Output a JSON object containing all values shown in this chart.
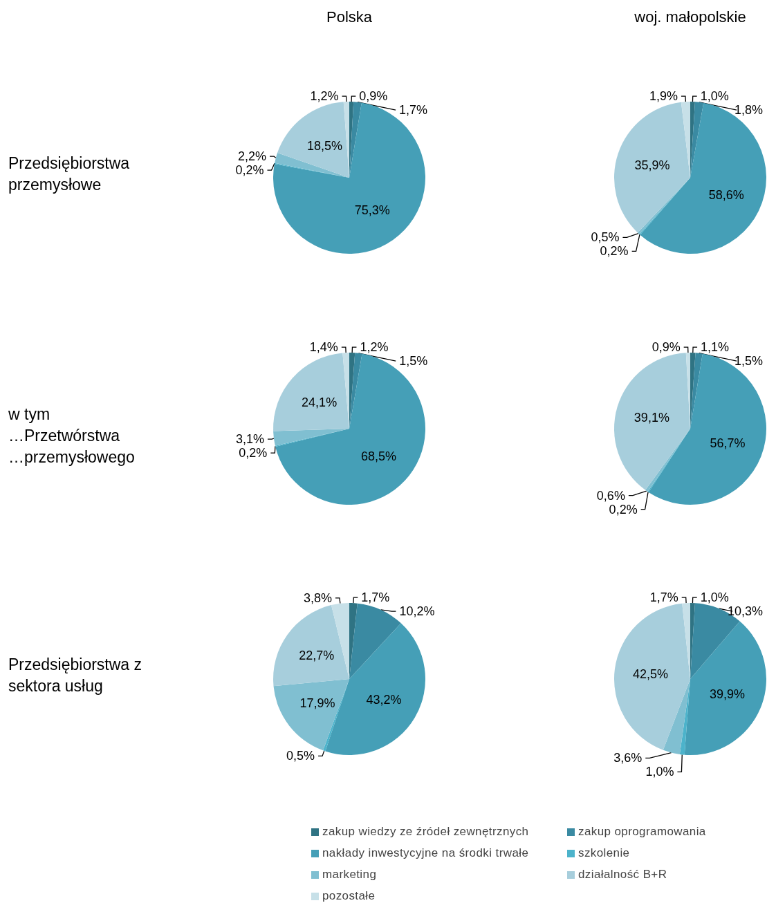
{
  "chart_data": [
    {
      "type": "pie",
      "title": "Polska",
      "legend": "bottom",
      "annotations": [
        "Przedsiębiorstwa przemysłowe"
      ],
      "categories": [
        "zakup wiedzy ze źródeł zewnętrznych",
        "zakup oprogramowania",
        "nakłady inwestycyjne na środki trwałe",
        "szkolenie",
        "marketing",
        "działalność B+R",
        "pozostałe"
      ],
      "values": [
        0.9,
        1.7,
        75.3,
        0.2,
        2.2,
        18.5,
        1.2
      ],
      "value_labels": [
        "0,9%",
        "1,7%",
        "75,3%",
        "0,2%",
        "2,2%",
        "18,5%",
        "1,2%"
      ],
      "colors": [
        "#2f7383",
        "#3a8aa2",
        "#459fb7",
        "#4cb3cb",
        "#80bfd1",
        "#a7cedc",
        "#c7e0e8"
      ]
    },
    {
      "type": "pie",
      "title": "woj. małopolskie",
      "values": [
        1.0,
        1.8,
        58.6,
        0.2,
        0.5,
        35.9,
        1.9
      ],
      "value_labels": [
        "1,0%",
        "1,8%",
        "58,6%",
        "0,2%",
        "0,5%",
        "35,9%",
        "1,9%"
      ],
      "colors": [
        "#2f7383",
        "#3a8aa2",
        "#459fb7",
        "#4cb3cb",
        "#80bfd1",
        "#a7cedc",
        "#c7e0e8"
      ]
    },
    {
      "type": "pie",
      "annotations": [
        "w tym\n…Przetwórstwa\n…przemysłowego"
      ],
      "values": [
        1.2,
        1.5,
        68.5,
        0.2,
        3.1,
        24.1,
        1.4
      ],
      "value_labels": [
        "1,2%",
        "1,5%",
        "68,5%",
        "0,2%",
        "3,1%",
        "24,1%",
        "1,4%"
      ],
      "colors": [
        "#2f7383",
        "#3a8aa2",
        "#459fb7",
        "#4cb3cb",
        "#80bfd1",
        "#a7cedc",
        "#c7e0e8"
      ]
    },
    {
      "type": "pie",
      "values": [
        1.1,
        1.5,
        56.7,
        0.2,
        0.6,
        39.1,
        0.9
      ],
      "value_labels": [
        "1,1%",
        "1,5%",
        "56,7%",
        "0,2%",
        "0,6%",
        "39,1%",
        "0,9%"
      ],
      "colors": [
        "#2f7383",
        "#3a8aa2",
        "#459fb7",
        "#4cb3cb",
        "#80bfd1",
        "#a7cedc",
        "#c7e0e8"
      ]
    },
    {
      "type": "pie",
      "annotations": [
        "Przedsiębiorstwa z sektora usług"
      ],
      "values": [
        1.7,
        10.2,
        43.2,
        0.5,
        17.9,
        22.7,
        3.8
      ],
      "value_labels": [
        "1,7%",
        "10,2%",
        "43,2%",
        "0,5%",
        "17,9%",
        "22,7%",
        "3,8%"
      ],
      "colors": [
        "#2f7383",
        "#3a8aa2",
        "#459fb7",
        "#4cb3cb",
        "#80bfd1",
        "#a7cedc",
        "#c7e0e8"
      ]
    },
    {
      "type": "pie",
      "values": [
        1.0,
        10.3,
        39.9,
        1.0,
        3.6,
        42.5,
        1.7
      ],
      "value_labels": [
        "1,0%",
        "10,3%",
        "39,9%",
        "1,0%",
        "3,6%",
        "42,5%",
        "1,7%"
      ],
      "colors": [
        "#2f7383",
        "#3a8aa2",
        "#459fb7",
        "#4cb3cb",
        "#80bfd1",
        "#a7cedc",
        "#c7e0e8"
      ]
    }
  ]
}
